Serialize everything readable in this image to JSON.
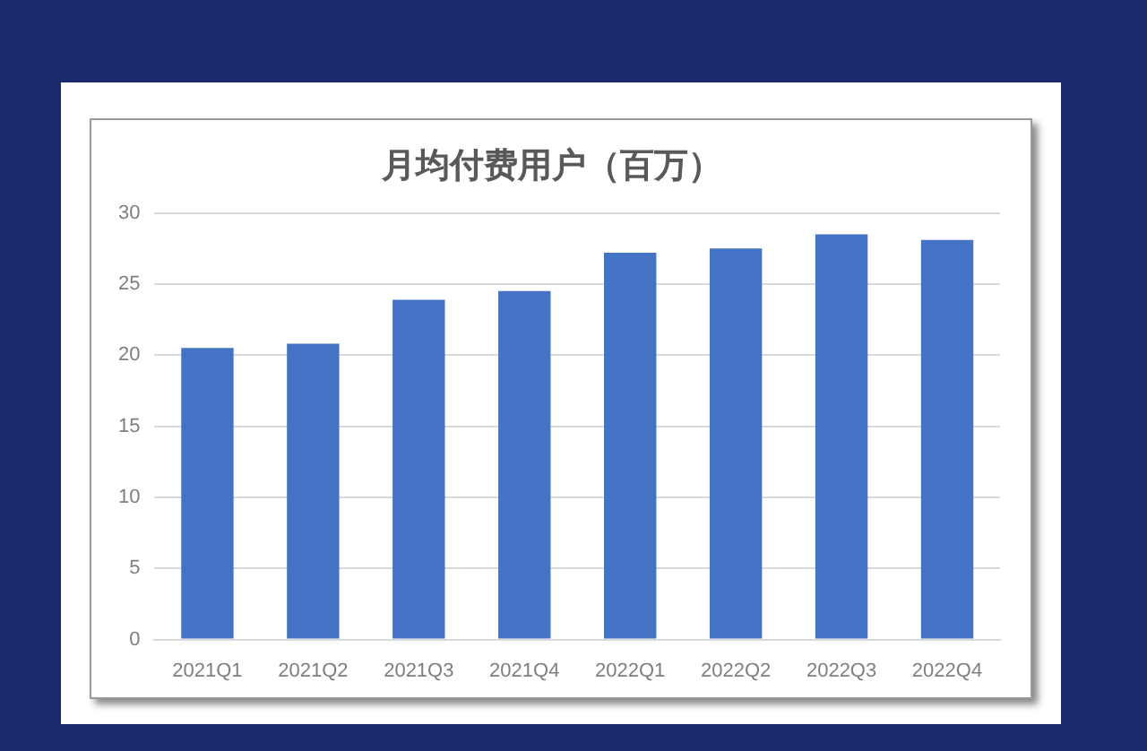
{
  "chart_data": {
    "type": "bar",
    "title": "月均付费用户（百万）",
    "categories": [
      "2021Q1",
      "2021Q2",
      "2021Q3",
      "2021Q4",
      "2022Q1",
      "2022Q2",
      "2022Q3",
      "2022Q4"
    ],
    "values": [
      20.5,
      20.8,
      23.9,
      24.5,
      27.2,
      27.5,
      28.5,
      28.1
    ],
    "color": "#4472c4",
    "ylim": [
      0,
      30
    ],
    "yticks": [
      0,
      5,
      10,
      15,
      20,
      25,
      30
    ],
    "grid": "y",
    "legend": false
  }
}
